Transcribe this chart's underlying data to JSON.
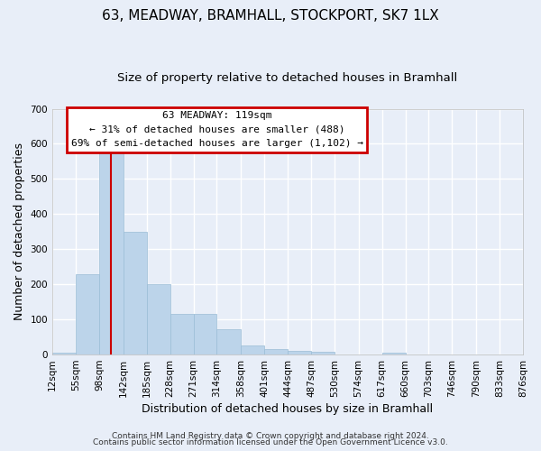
{
  "title": "63, MEADWAY, BRAMHALL, STOCKPORT, SK7 1LX",
  "subtitle": "Size of property relative to detached houses in Bramhall",
  "xlabel": "Distribution of detached houses by size in Bramhall",
  "ylabel": "Number of detached properties",
  "bin_edges": [
    12,
    55,
    98,
    142,
    185,
    228,
    271,
    314,
    358,
    401,
    444,
    487,
    530,
    574,
    617,
    660,
    703,
    746,
    790,
    833,
    876
  ],
  "bar_heights": [
    5,
    230,
    580,
    350,
    200,
    115,
    115,
    72,
    26,
    15,
    10,
    8,
    0,
    0,
    5,
    0,
    0,
    0,
    0,
    0,
    4
  ],
  "bar_color": "#bcd4ea",
  "bar_edge_color": "#9bbdd6",
  "ylim": [
    0,
    700
  ],
  "yticks": [
    0,
    100,
    200,
    300,
    400,
    500,
    600,
    700
  ],
  "xtick_labels": [
    "12sqm",
    "55sqm",
    "98sqm",
    "142sqm",
    "185sqm",
    "228sqm",
    "271sqm",
    "314sqm",
    "358sqm",
    "401sqm",
    "444sqm",
    "487sqm",
    "530sqm",
    "574sqm",
    "617sqm",
    "660sqm",
    "703sqm",
    "746sqm",
    "790sqm",
    "833sqm",
    "876sqm"
  ],
  "property_line_x": 119,
  "annotation_title": "63 MEADWAY: 119sqm",
  "annotation_line1": "← 31% of detached houses are smaller (488)",
  "annotation_line2": "69% of semi-detached houses are larger (1,102) →",
  "annotation_box_color": "#ffffff",
  "annotation_box_edge": "#cc0000",
  "vline_color": "#cc0000",
  "footer_line1": "Contains HM Land Registry data © Crown copyright and database right 2024.",
  "footer_line2": "Contains public sector information licensed under the Open Government Licence v3.0.",
  "bg_color": "#e8eef8",
  "plot_bg_color": "#e8eef8",
  "grid_color": "#ffffff",
  "title_fontsize": 11,
  "subtitle_fontsize": 9.5,
  "axis_label_fontsize": 9,
  "tick_fontsize": 7.5,
  "footer_fontsize": 6.5
}
